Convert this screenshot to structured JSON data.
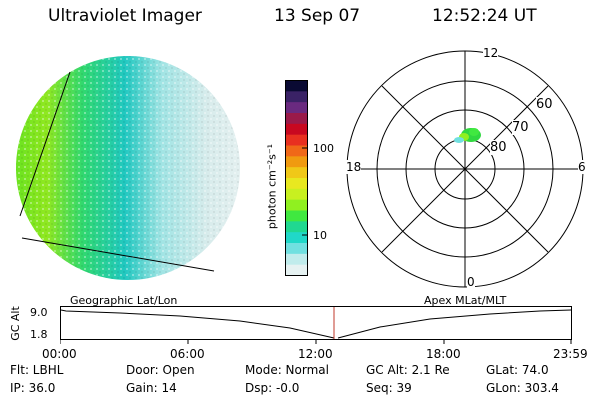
{
  "header": {
    "title": "Ultraviolet Imager",
    "date": "13 Sep 07",
    "time": "12:52:24 UT"
  },
  "colorbar": {
    "unit_label": "photon cm⁻²s⁻¹",
    "ticks": [
      "100",
      "10"
    ],
    "colors": [
      "#0a0a33",
      "#3a2266",
      "#6a2a80",
      "#9a1a4a",
      "#c80820",
      "#e83020",
      "#f06818",
      "#f09a10",
      "#f0c818",
      "#e8e820",
      "#c8f020",
      "#90f020",
      "#40e840",
      "#20d890",
      "#20d8c8",
      "#70e0e0",
      "#c0ecec",
      "#e6f2f2"
    ]
  },
  "polar": {
    "labels": {
      "top": "12",
      "left": "18",
      "right": "6",
      "bottom": "0"
    },
    "rings": [
      "60",
      "70",
      "80"
    ]
  },
  "timeline": {
    "left_label": "Geographic Lat/Lon",
    "right_label": "Apex MLat/MLT",
    "y_title": "GC Alt",
    "y_max": "9.0",
    "y_min": "1.8",
    "x_ticks": [
      "00:00",
      "06:00",
      "12:00",
      "18:00",
      "23:59"
    ],
    "current_time": "12:52"
  },
  "info": {
    "flt": "Flt: LBHL",
    "ip": "IP: 36.0",
    "door": "Door: Open",
    "gain": "Gain: 14",
    "mode": "Mode: Normal",
    "dsp": "Dsp:   -0.0",
    "gcalt": "GC Alt: 2.1 Re",
    "seq": "Seq: 39",
    "glat": "GLat: 74.0",
    "glon": "GLon: 303.4"
  }
}
